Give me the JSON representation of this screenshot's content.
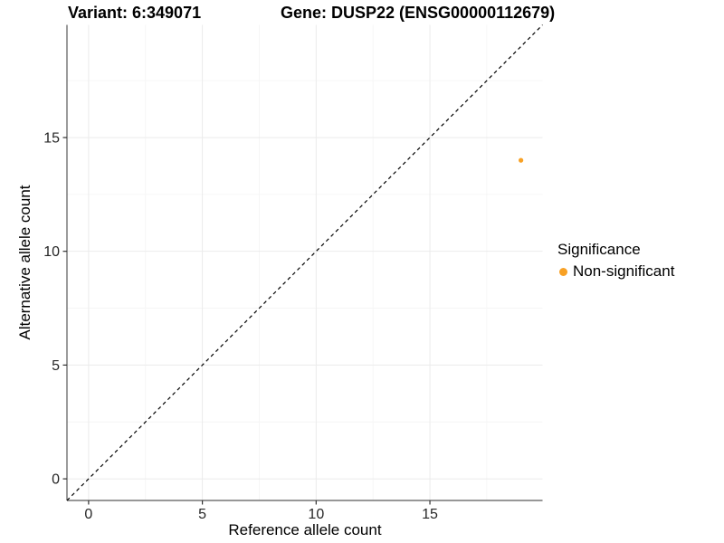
{
  "chart_data": {
    "type": "scatter",
    "title_left": "Variant: 6:349071",
    "title_right": "Gene: DUSP22 (ENSG00000112679)",
    "xlabel": "Reference allele count",
    "ylabel": "Alternative allele count",
    "xlim": [
      -0.95,
      19.95
    ],
    "ylim": [
      -0.95,
      19.95
    ],
    "xticks": [
      0,
      5,
      10,
      15
    ],
    "yticks": [
      0,
      5,
      10,
      15
    ],
    "minor_xticks": [
      2.5,
      7.5,
      12.5,
      17.5
    ],
    "minor_yticks": [
      2.5,
      7.5,
      12.5,
      17.5
    ],
    "grid": "major+minor",
    "identity_line": {
      "style": "dashed",
      "slope": 1,
      "intercept": 0,
      "color": "#000000"
    },
    "series": [
      {
        "name": "Non-significant",
        "color": "#F8A125",
        "point_radius": 2.6,
        "points": [
          {
            "x": 19,
            "y": 14
          }
        ]
      }
    ],
    "legend": {
      "title": "Significance",
      "position": "right",
      "entries": [
        {
          "label": "Non-significant",
          "color": "#F8A125"
        }
      ]
    }
  },
  "colors": {
    "background": "#FFFFFF",
    "grid_major": "#EBEBEB",
    "grid_minor": "#F6F6F6",
    "axis_line": "#595959",
    "tick_mark": "#333333",
    "tick_text": "#262626",
    "text": "#000000"
  }
}
